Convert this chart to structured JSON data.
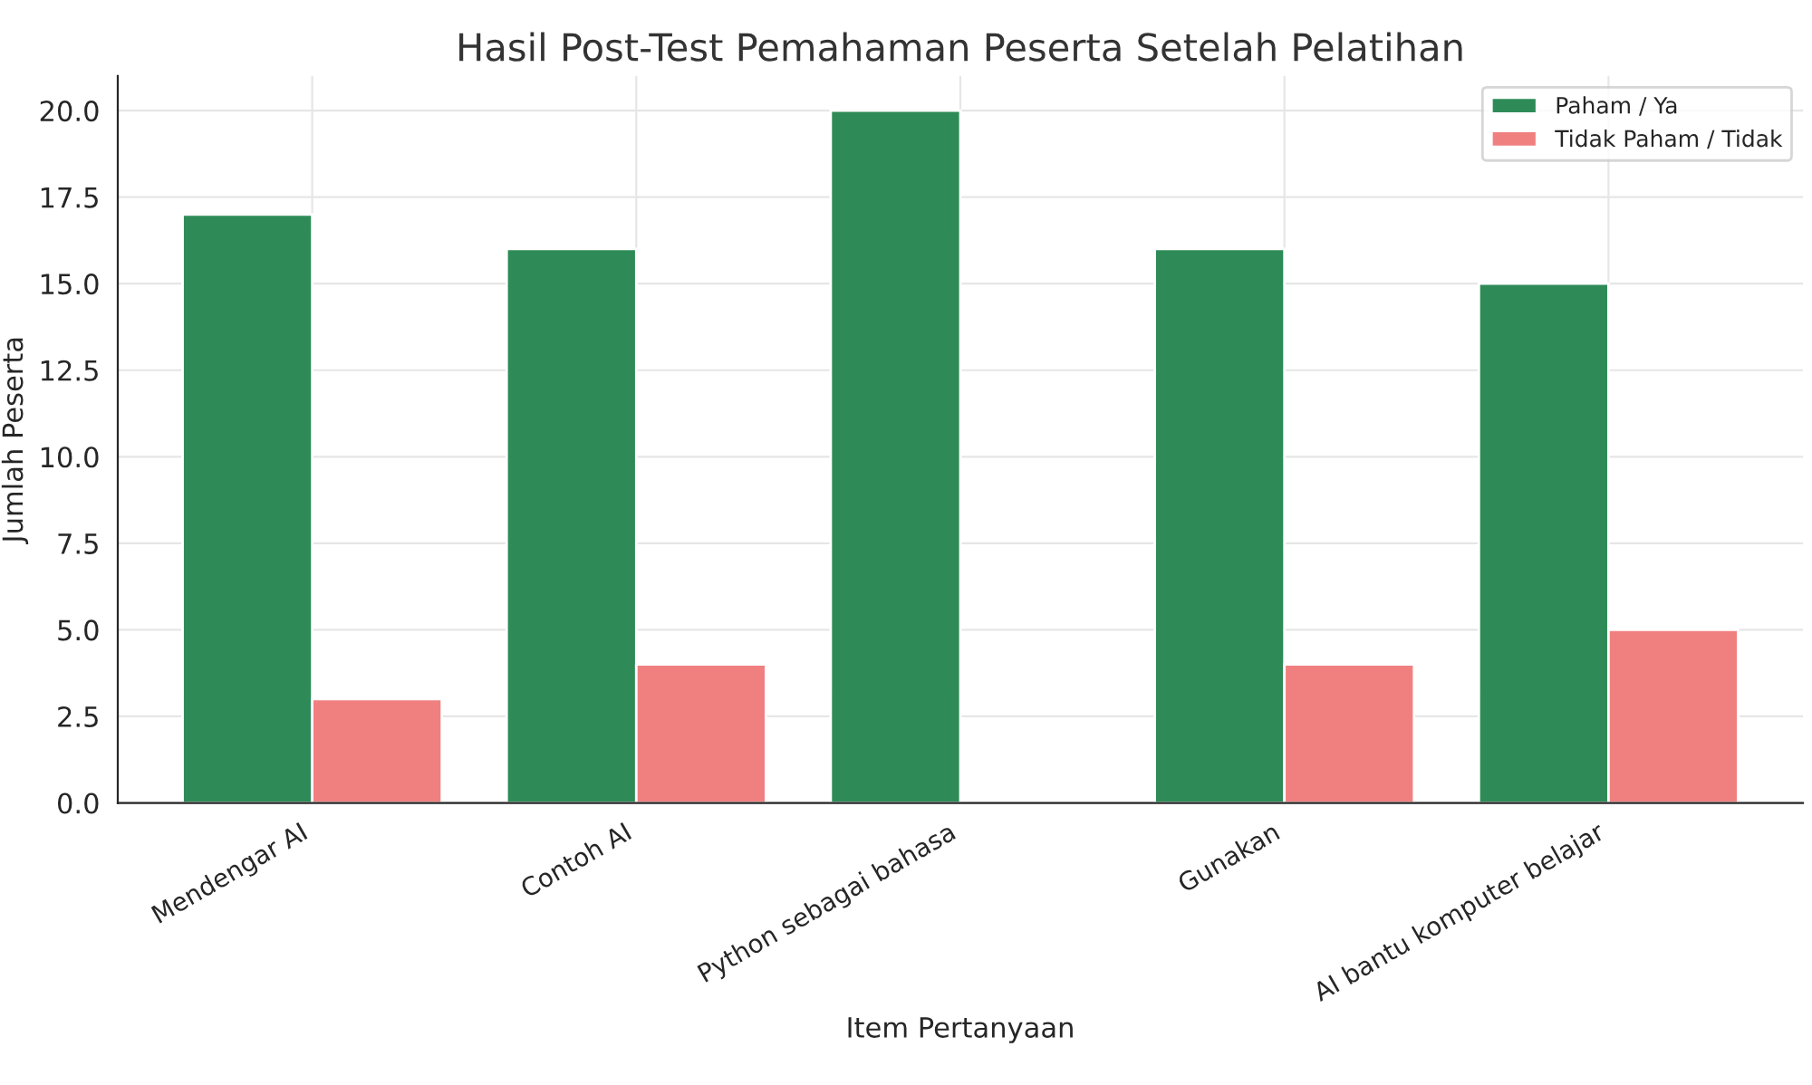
{
  "chart_data": {
    "type": "bar",
    "title": "Hasil Post-Test Pemahaman Peserta Setelah Pelatihan",
    "xlabel": "Item Pertanyaan",
    "ylabel": "Jumlah Peserta",
    "categories": [
      "Mendengar AI",
      "Contoh AI",
      "Python sebagai bahasa",
      "Gunakan",
      "AI bantu komputer belajar"
    ],
    "series": [
      {
        "name": "Paham / Ya",
        "color": "#2e8b57",
        "values": [
          17,
          16,
          20,
          16,
          15
        ]
      },
      {
        "name": "Tidak Paham / Tidak",
        "color": "#f08080",
        "values": [
          3,
          4,
          null,
          4,
          5
        ]
      }
    ],
    "ylim": [
      0,
      21
    ],
    "yticks": [
      {
        "value": 0,
        "label": "0.0"
      },
      {
        "value": 2.5,
        "label": "2.5"
      },
      {
        "value": 5,
        "label": "5.0"
      },
      {
        "value": 7.5,
        "label": "7.5"
      },
      {
        "value": 10,
        "label": "10.0"
      },
      {
        "value": 12.5,
        "label": "12.5"
      },
      {
        "value": 15,
        "label": "15.0"
      },
      {
        "value": 17.5,
        "label": "17.5"
      },
      {
        "value": 20,
        "label": "20.0"
      }
    ],
    "grid": true,
    "legend": "top right"
  }
}
